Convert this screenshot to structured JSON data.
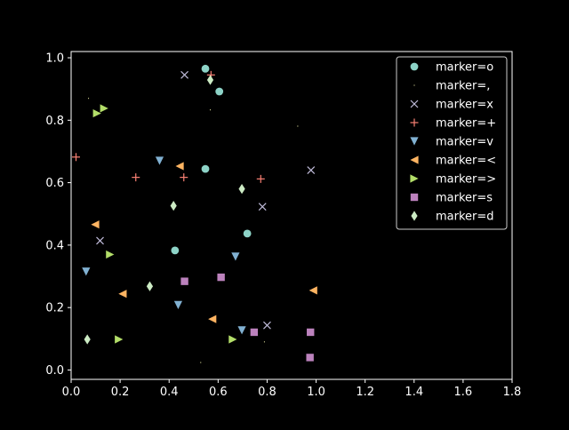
{
  "chart_data": {
    "type": "scatter",
    "title": "",
    "xlabel": "",
    "ylabel": "",
    "xlim": [
      0.0,
      1.8
    ],
    "ylim": [
      -0.03,
      1.02
    ],
    "xticks": [
      "0.0",
      "0.2",
      "0.4",
      "0.6",
      "0.8",
      "1.0",
      "1.2",
      "1.4",
      "1.6",
      "1.8"
    ],
    "yticks": [
      "0.0",
      "0.2",
      "0.4",
      "0.6",
      "0.8",
      "1.0"
    ],
    "grid": false,
    "legend_position": "top-right",
    "background": "#000000",
    "series": [
      {
        "name": "marker=o",
        "marker": "o",
        "color": "#8dd3c7",
        "points": [
          [
            0.548,
            0.965
          ],
          [
            0.605,
            0.892
          ],
          [
            0.548,
            0.644
          ],
          [
            0.719,
            0.437
          ],
          [
            0.424,
            0.383
          ]
        ]
      },
      {
        "name": "marker=,",
        "marker": ",",
        "color": "#feffb3",
        "points": [
          [
            0.071,
            0.87
          ],
          [
            0.568,
            0.833
          ],
          [
            0.925,
            0.781
          ],
          [
            0.789,
            0.09
          ],
          [
            0.529,
            0.024
          ]
        ]
      },
      {
        "name": "marker=x",
        "marker": "x",
        "color": "#bfbbd9",
        "points": [
          [
            0.463,
            0.945
          ],
          [
            0.979,
            0.64
          ],
          [
            0.781,
            0.523
          ],
          [
            0.118,
            0.414
          ],
          [
            0.8,
            0.143
          ]
        ]
      },
      {
        "name": "marker=+",
        "marker": "+",
        "color": "#fa8174",
        "points": [
          [
            0.02,
            0.682
          ],
          [
            0.571,
            0.945
          ],
          [
            0.264,
            0.617
          ],
          [
            0.46,
            0.617
          ],
          [
            0.774,
            0.612
          ]
        ]
      },
      {
        "name": "marker=v",
        "marker": "v",
        "color": "#81b1d2",
        "points": [
          [
            0.361,
            0.67
          ],
          [
            0.061,
            0.315
          ],
          [
            0.671,
            0.363
          ],
          [
            0.437,
            0.208
          ],
          [
            0.697,
            0.127
          ]
        ]
      },
      {
        "name": "marker=<",
        "marker": "<",
        "color": "#fdb462",
        "points": [
          [
            0.443,
            0.653
          ],
          [
            0.098,
            0.466
          ],
          [
            0.21,
            0.244
          ],
          [
            0.576,
            0.163
          ],
          [
            0.988,
            0.255
          ]
        ]
      },
      {
        "name": "marker=>",
        "marker": ">",
        "color": "#b3de69",
        "points": [
          [
            0.135,
            0.838
          ],
          [
            0.106,
            0.822
          ],
          [
            0.159,
            0.37
          ],
          [
            0.195,
            0.098
          ],
          [
            0.66,
            0.098
          ]
        ]
      },
      {
        "name": "marker=s",
        "marker": "s",
        "color": "#bc82bd",
        "points": [
          [
            0.463,
            0.284
          ],
          [
            0.612,
            0.297
          ],
          [
            0.747,
            0.121
          ],
          [
            0.977,
            0.121
          ],
          [
            0.975,
            0.04
          ]
        ]
      },
      {
        "name": "marker=d",
        "marker": "d",
        "color": "#ccebc4",
        "points": [
          [
            0.568,
            0.929
          ],
          [
            0.697,
            0.58
          ],
          [
            0.418,
            0.526
          ],
          [
            0.321,
            0.268
          ],
          [
            0.066,
            0.098
          ]
        ]
      }
    ]
  }
}
